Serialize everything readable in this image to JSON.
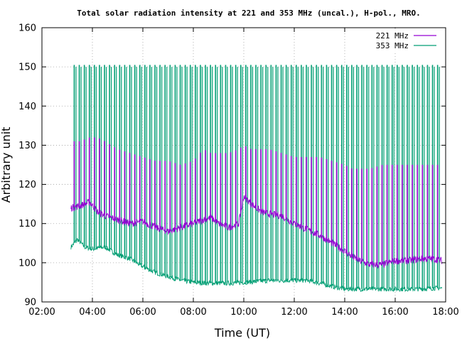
{
  "chart_data": {
    "type": "line",
    "title": "Total solar radiation intensity at 221 and 353 MHz (uncal.), H-pol., MRO.",
    "xlabel": "Time (UT)",
    "ylabel": "Arbitrary unit",
    "xlim": [
      2.0,
      18.0
    ],
    "ylim": [
      90,
      160
    ],
    "x_ticks": [
      {
        "v": 2,
        "label": "02:00"
      },
      {
        "v": 4,
        "label": "04:00"
      },
      {
        "v": 6,
        "label": "06:00"
      },
      {
        "v": 8,
        "label": "08:00"
      },
      {
        "v": 10,
        "label": "10:00"
      },
      {
        "v": 12,
        "label": "12:00"
      },
      {
        "v": 14,
        "label": "14:00"
      },
      {
        "v": 16,
        "label": "16:00"
      },
      {
        "v": 18,
        "label": "18:00"
      }
    ],
    "y_ticks": [
      {
        "v": 90,
        "label": "90"
      },
      {
        "v": 100,
        "label": "100"
      },
      {
        "v": 110,
        "label": "110"
      },
      {
        "v": 120,
        "label": "120"
      },
      {
        "v": 130,
        "label": "130"
      },
      {
        "v": 140,
        "label": "140"
      },
      {
        "v": 150,
        "label": "150"
      },
      {
        "v": 160,
        "label": "160"
      }
    ],
    "grid": true,
    "legend_position": "top-right",
    "series": [
      {
        "name": "221 MHz",
        "color": "#9400d3",
        "x": [
          3.15,
          3.5,
          3.9,
          4.2,
          4.5,
          5.0,
          5.5,
          6.0,
          6.5,
          7.0,
          7.5,
          8.0,
          8.4,
          8.7,
          9.0,
          9.4,
          9.8,
          10.0,
          10.3,
          10.7,
          11.0,
          11.5,
          12.0,
          12.5,
          13.0,
          13.5,
          14.0,
          14.3,
          14.6,
          15.0,
          15.5,
          16.0,
          16.5,
          17.0,
          17.5,
          17.85
        ],
        "y": [
          114,
          114.5,
          115.5,
          113,
          112,
          111,
          110,
          110.5,
          109,
          108,
          109,
          110,
          111,
          111.5,
          110,
          109,
          110,
          117,
          115,
          113,
          112.5,
          112,
          110,
          108.5,
          107,
          105,
          103,
          101.5,
          100.5,
          99.5,
          99.5,
          100.5,
          100.5,
          101,
          101,
          100.5
        ],
        "spike_max": [
          131,
          131,
          132,
          132,
          131,
          129,
          128,
          127,
          126,
          126,
          125,
          126,
          129,
          128,
          128,
          128,
          129,
          130,
          129,
          129,
          129,
          128,
          127,
          127,
          127,
          126,
          125,
          124,
          124,
          124,
          125,
          125,
          125,
          125,
          125,
          125
        ]
      },
      {
        "name": "353 MHz",
        "color": "#009e73",
        "x": [
          3.15,
          3.4,
          3.7,
          4.0,
          4.5,
          5.0,
          5.5,
          6.0,
          6.5,
          7.0,
          7.5,
          8.0,
          8.5,
          9.0,
          9.5,
          10.0,
          10.5,
          11.0,
          11.5,
          12.0,
          12.5,
          13.0,
          13.5,
          14.0,
          14.5,
          15.0,
          15.5,
          16.0,
          16.5,
          17.0,
          17.5,
          17.85
        ],
        "y": [
          104,
          106,
          104,
          103.5,
          104,
          102,
          101,
          99,
          97.5,
          96.5,
          95.5,
          95,
          94.8,
          94.8,
          94.8,
          95,
          95.2,
          95.5,
          95.5,
          95.5,
          95.5,
          94.8,
          94,
          93.3,
          93.3,
          93.3,
          93.3,
          93.3,
          93.3,
          93.3,
          93.5,
          93.5
        ],
        "spike_max": 150.5
      }
    ]
  }
}
